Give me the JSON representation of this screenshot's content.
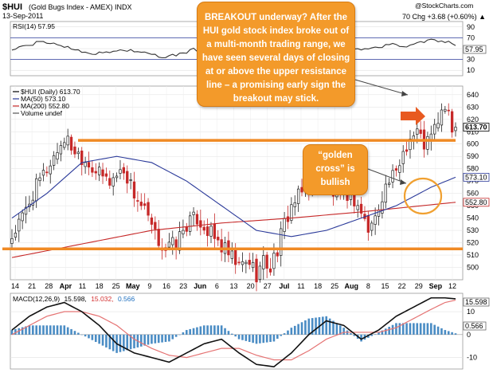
{
  "header": {
    "symbol": "$HUI",
    "name": "(Gold Bugs Index - AMEX) INDX",
    "date": "13-Sep-2011",
    "watermark": "@StockCharts.com",
    "quote_suffix": "70 Chg +3.68 (+0.60%) ▲"
  },
  "rsi_panel": {
    "legend": "RSI(14) 57.95",
    "current_label": "57.95",
    "line_color": "#333333",
    "band_color": "#8a8a8a"
  },
  "price_panel": {
    "legend": [
      {
        "text": "$HUI (Daily) 613.70",
        "color": "#000000"
      },
      {
        "text": "MA(50) 573.10",
        "color": "#2b3a9a"
      },
      {
        "text": "MA(200) 552.80",
        "color": "#c62828"
      },
      {
        "text": "Volume undef",
        "color": "#555555"
      }
    ],
    "last_label": "613.70",
    "ma50_label": "573.10",
    "ma200_label": "552.80"
  },
  "macd_panel": {
    "legend": {
      "name": "MACD(12,26,9)",
      "macd": "15.598,",
      "signal": "15.032,",
      "hist": "0.566"
    },
    "macd_label": "15.598",
    "hist_label": "0.566"
  },
  "callouts": {
    "breakout": [
      "BREAKOUT underway? After the",
      "HUI gold stock index broke out of",
      "a multi-month trading range, we",
      "have seen several days of closing",
      "at or above the upper resistance",
      "line –  a  promising early sign the",
      "breakout may stick."
    ],
    "golden": [
      "“golden",
      "cross” is",
      "bullish"
    ]
  },
  "colors": {
    "up": "#222222",
    "down": "#c62828",
    "ma50": "#2b3a9a",
    "ma200": "#c62828",
    "resistance": "#f08a24",
    "callout": "#f39a2a",
    "macd_line": "#111111",
    "signal_line": "#e57373",
    "hist": "#4a8cc4"
  },
  "chart_data": [
    {
      "type": "line",
      "panel": "RSI(14)",
      "y_ticks": [
        90,
        70,
        50,
        30,
        10
      ],
      "ylim": [
        0,
        100
      ],
      "reference_levels": [
        70,
        30
      ],
      "last_value": 57.95,
      "x": [
        0,
        4,
        8,
        12,
        16,
        20,
        24,
        28,
        32,
        36,
        40,
        44,
        48,
        52,
        56,
        60,
        64,
        68,
        72,
        76,
        80,
        84,
        88,
        92,
        96,
        100,
        104,
        108,
        112,
        116,
        120,
        124,
        127
      ],
      "values": [
        48,
        55,
        62,
        60,
        52,
        46,
        40,
        44,
        48,
        45,
        38,
        34,
        40,
        48,
        44,
        38,
        34,
        40,
        46,
        52,
        50,
        58,
        64,
        60,
        55,
        48,
        52,
        58,
        54,
        60,
        66,
        62,
        58
      ]
    },
    {
      "type": "line",
      "panel": "Price",
      "title": "$HUI (Daily) 613.70",
      "y_ticks": [
        640,
        630,
        620,
        610,
        600,
        590,
        580,
        570,
        560,
        550,
        540,
        530,
        520,
        510,
        500
      ],
      "ylim": [
        490,
        647
      ],
      "x_tick_labels": [
        "14",
        "21",
        "28",
        "Apr",
        "11",
        "18",
        "25",
        "May",
        "9",
        "16",
        "23",
        "Jun",
        "6",
        "13",
        "20",
        "27",
        "Jul",
        "11",
        "18",
        "25",
        "Aug",
        "8",
        "15",
        "22",
        "29",
        "Sep",
        "12"
      ],
      "close_anchors": {
        "x": [
          0,
          3,
          6,
          9,
          12,
          15,
          18,
          22,
          25,
          28,
          32,
          35,
          38,
          41,
          44,
          47,
          50,
          53,
          56,
          59,
          62,
          65,
          68,
          70,
          72,
          74,
          76,
          78,
          80,
          83,
          86,
          88,
          90,
          92,
          94,
          96,
          98,
          100,
          102,
          104,
          106,
          108,
          110,
          112,
          114,
          116,
          118,
          120,
          122,
          124,
          126,
          127
        ],
        "values": [
          525,
          540,
          560,
          575,
          590,
          605,
          595,
          585,
          575,
          570,
          580,
          560,
          545,
          525,
          515,
          520,
          535,
          540,
          530,
          520,
          510,
          500,
          505,
          495,
          505,
          500,
          515,
          535,
          550,
          560,
          570,
          575,
          565,
          560,
          555,
          560,
          555,
          545,
          530,
          540,
          560,
          570,
          575,
          595,
          605,
          610,
          600,
          605,
          620,
          630,
          610,
          613.7
        ]
      },
      "ma50": {
        "x": [
          0,
          10,
          20,
          30,
          40,
          50,
          60,
          70,
          80,
          90,
          100,
          110,
          120,
          127
        ],
        "values": [
          540,
          560,
          585,
          590,
          585,
          570,
          550,
          530,
          525,
          530,
          540,
          550,
          565,
          573.1
        ]
      },
      "ma200": {
        "x": [
          0,
          20,
          40,
          60,
          80,
          100,
          127
        ],
        "values": [
          508,
          519,
          530,
          536,
          540,
          545,
          552.8
        ]
      },
      "resistance": 603,
      "support": 515,
      "last": 613.7,
      "ma50_last": 573.1,
      "ma200_last": 552.8
    },
    {
      "type": "line",
      "panel": "MACD(12,26,9)",
      "y_ticks": [
        10,
        0,
        -10
      ],
      "ylim": [
        -15,
        18
      ],
      "x": [
        0,
        5,
        10,
        15,
        20,
        25,
        30,
        35,
        40,
        45,
        50,
        55,
        60,
        65,
        70,
        75,
        80,
        85,
        90,
        95,
        100,
        105,
        110,
        115,
        120,
        124,
        127
      ],
      "macd": [
        2,
        8,
        12,
        14,
        10,
        4,
        -4,
        -8,
        -10,
        -12,
        -8,
        -4,
        -2,
        -8,
        -13,
        -14,
        -8,
        0,
        6,
        4,
        -2,
        2,
        8,
        12,
        16,
        16,
        15.598
      ],
      "signal": [
        0,
        4,
        8,
        10,
        10,
        8,
        4,
        -2,
        -6,
        -9,
        -10,
        -8,
        -6,
        -6,
        -9,
        -11,
        -11,
        -7,
        -2,
        1,
        1,
        1,
        3,
        7,
        11,
        14,
        15.032
      ],
      "histogram_last": 0.566
    }
  ]
}
